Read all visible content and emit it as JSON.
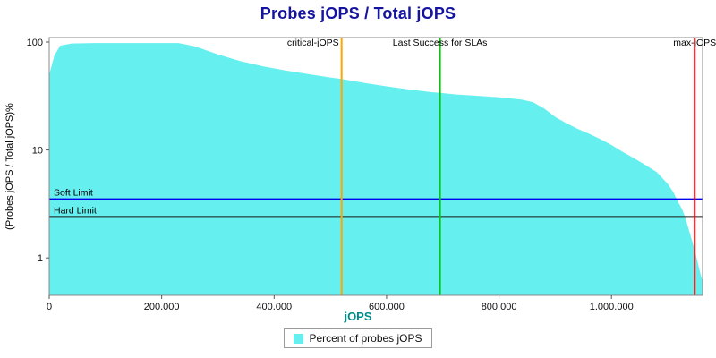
{
  "title": "Probes jOPS / Total jOPS",
  "axes": {
    "x_label": "jOPS",
    "y_label": "(Probes jOPS / Total jOPS)%"
  },
  "legend": {
    "label": "Percent of probes jOPS",
    "swatch_color": "#66efef"
  },
  "colors": {
    "title": "#1414a0",
    "area": "#66efef",
    "critical_line": "#ffa500",
    "sla_line": "#00cc00",
    "max_line": "#ee0000",
    "soft_limit_line": "#0000ee",
    "hard_limit_line": "#1a1a1a",
    "frame": "#888888",
    "tick_text": "#111111"
  },
  "chart_data": {
    "type": "area",
    "title": "Probes jOPS / Total jOPS",
    "xlabel": "jOPS",
    "ylabel": "(Probes jOPS / Total jOPS)%",
    "y_scale": "log",
    "xlim": [
      0,
      1162000
    ],
    "ylim": [
      0.45,
      110
    ],
    "x_ticks": [
      0,
      200000,
      400000,
      600000,
      800000,
      1000000
    ],
    "y_ticks": [
      1,
      10,
      100
    ],
    "grid": false,
    "legend_position": "bottom",
    "series": [
      {
        "name": "Percent of probes jOPS",
        "points": [
          [
            0,
            48
          ],
          [
            10000,
            75
          ],
          [
            20000,
            92
          ],
          [
            40000,
            96
          ],
          [
            80000,
            97
          ],
          [
            150000,
            97
          ],
          [
            230000,
            97
          ],
          [
            260000,
            90
          ],
          [
            300000,
            76
          ],
          [
            340000,
            66
          ],
          [
            380000,
            59
          ],
          [
            420000,
            54
          ],
          [
            460000,
            50
          ],
          [
            500000,
            46.5
          ],
          [
            520000,
            45
          ],
          [
            560000,
            41.5
          ],
          [
            600000,
            38.5
          ],
          [
            640000,
            36
          ],
          [
            680000,
            34
          ],
          [
            695000,
            33.5
          ],
          [
            720000,
            32.5
          ],
          [
            760000,
            31.5
          ],
          [
            800000,
            30.5
          ],
          [
            840000,
            29
          ],
          [
            860000,
            27.5
          ],
          [
            880000,
            24
          ],
          [
            900000,
            20
          ],
          [
            920000,
            17.5
          ],
          [
            940000,
            15.5
          ],
          [
            960000,
            14
          ],
          [
            980000,
            12.5
          ],
          [
            1000000,
            11
          ],
          [
            1020000,
            9.5
          ],
          [
            1040000,
            8.3
          ],
          [
            1060000,
            7.2
          ],
          [
            1080000,
            6.2
          ],
          [
            1100000,
            4.8
          ],
          [
            1110000,
            4.0
          ],
          [
            1115000,
            3.5
          ],
          [
            1125000,
            2.8
          ],
          [
            1130000,
            2.4
          ],
          [
            1140000,
            1.6
          ],
          [
            1148000,
            1.15
          ],
          [
            1155000,
            0.8
          ],
          [
            1162000,
            0.58
          ]
        ]
      }
    ],
    "vlines": [
      {
        "label": "critical-jOPS",
        "x": 520000,
        "color": "#ffa500",
        "anchor": "end"
      },
      {
        "label": "Last Success for SLAs",
        "x": 695000,
        "color": "#00cc00",
        "anchor": "middle"
      },
      {
        "label": "max-jOPS",
        "x": 1148000,
        "color": "#ee0000",
        "anchor": "middle"
      }
    ],
    "hlines": [
      {
        "label": "Soft Limit",
        "y": 3.5,
        "color": "#0000ee"
      },
      {
        "label": "Hard Limit",
        "y": 2.4,
        "color": "#1a1a1a"
      }
    ]
  }
}
